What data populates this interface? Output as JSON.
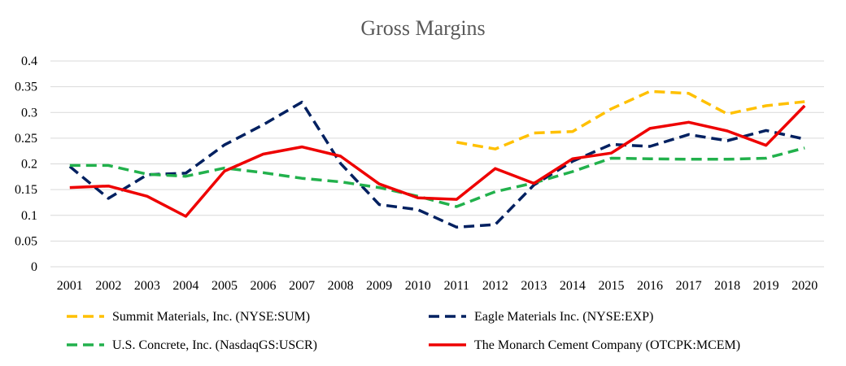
{
  "chart_data": {
    "type": "line",
    "title": "Gross Margins",
    "xlabel": "",
    "ylabel": "",
    "ylim": [
      0,
      0.4
    ],
    "yticks": [
      "0",
      "0.05",
      "0.1",
      "0.15",
      "0.2",
      "0.25",
      "0.3",
      "0.35",
      "0.4"
    ],
    "categories": [
      "2001",
      "2002",
      "2003",
      "2004",
      "2005",
      "2006",
      "2007",
      "2008",
      "2009",
      "2010",
      "2011",
      "2012",
      "2013",
      "2014",
      "2015",
      "2016",
      "2017",
      "2018",
      "2019",
      "2020"
    ],
    "grid": "horizontal",
    "legend_position": "bottom",
    "series": [
      {
        "name": "Summit Materials, Inc. (NYSE:SUM)",
        "color": "#FFC000",
        "dash": "dashed",
        "values": [
          null,
          null,
          null,
          null,
          null,
          null,
          null,
          null,
          null,
          null,
          0.242,
          0.229,
          0.26,
          0.263,
          0.307,
          0.341,
          0.337,
          0.297,
          0.313,
          0.321
        ]
      },
      {
        "name": "Eagle Materials Inc. (NYSE:EXP)",
        "color": "#002060",
        "dash": "dashed",
        "values": [
          0.195,
          0.133,
          0.179,
          0.182,
          0.237,
          0.276,
          0.32,
          0.201,
          0.121,
          0.111,
          0.077,
          0.082,
          0.159,
          0.205,
          0.238,
          0.234,
          0.257,
          0.245,
          0.265,
          0.248
        ]
      },
      {
        "name": "U.S. Concrete, Inc. (NasdaqGS:USCR)",
        "color": "#22B14C",
        "dash": "dashed",
        "values": [
          0.197,
          0.197,
          0.18,
          0.176,
          0.192,
          0.183,
          0.172,
          0.165,
          0.154,
          0.137,
          0.117,
          0.146,
          0.163,
          0.185,
          0.211,
          0.21,
          0.209,
          0.209,
          0.211,
          0.231
        ]
      },
      {
        "name": "The Monarch Cement Company (OTCPK:MCEM)",
        "color": "#EE0000",
        "dash": "solid",
        "values": [
          0.154,
          0.157,
          0.137,
          0.098,
          0.186,
          0.219,
          0.233,
          0.215,
          0.161,
          0.134,
          0.131,
          0.191,
          0.162,
          0.21,
          0.221,
          0.269,
          0.281,
          0.264,
          0.236,
          0.313
        ]
      }
    ]
  }
}
